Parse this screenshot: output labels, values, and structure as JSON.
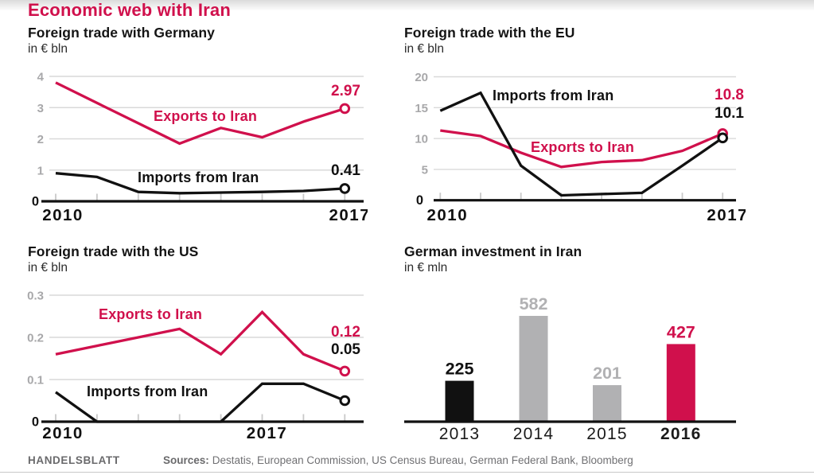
{
  "page_title": "Economic web with Iran",
  "colors": {
    "crimson": "#d0104c",
    "black": "#111111",
    "gray_bar": "#b1b1b3",
    "gray_tick": "#a8a8aa",
    "gridline": "#d9d9d9",
    "tick_mark": "#c9c9c9",
    "year_label": "#1a1a1a",
    "footer_text": "#707073"
  },
  "chart_data": [
    {
      "id": "germany",
      "type": "line",
      "title": "Foreign trade with Germany",
      "subtitle": "in € bln",
      "x_tick_labels": [
        "2010",
        "",
        "",
        "",
        "",
        "",
        "",
        "2017"
      ],
      "y_ticks": [
        {
          "label": "4",
          "value": 4
        },
        {
          "label": "3",
          "value": 3
        },
        {
          "label": "2",
          "value": 2
        },
        {
          "label": "1",
          "value": 1
        },
        {
          "label": "0",
          "value": 0
        }
      ],
      "ylim": [
        0,
        4
      ],
      "grid": true,
      "series": [
        {
          "name": "Exports to Iran",
          "color": "crimson",
          "values": [
            3.8,
            3.15,
            2.5,
            1.85,
            2.35,
            2.05,
            2.55,
            2.97
          ],
          "end_label": "2.97"
        },
        {
          "name": "Imports from Iran",
          "color": "black",
          "values": [
            0.9,
            0.78,
            0.3,
            0.26,
            0.28,
            0.3,
            0.33,
            0.41
          ],
          "end_label": "0.41"
        }
      ]
    },
    {
      "id": "eu",
      "type": "line",
      "title": "Foreign trade with the EU",
      "subtitle": "in € bln",
      "x_tick_labels": [
        "2010",
        "",
        "",
        "",
        "",
        "",
        "",
        "2017"
      ],
      "y_ticks": [
        {
          "label": "20",
          "value": 20
        },
        {
          "label": "15",
          "value": 15
        },
        {
          "label": "10",
          "value": 10
        },
        {
          "label": "5",
          "value": 5
        },
        {
          "label": "0",
          "value": 0
        }
      ],
      "ylim": [
        0,
        20
      ],
      "grid": true,
      "series": [
        {
          "name": "Exports to Iran",
          "color": "crimson",
          "values": [
            11.3,
            10.4,
            7.7,
            5.4,
            6.2,
            6.5,
            8.0,
            10.8
          ],
          "end_label": "10.8"
        },
        {
          "name": "Imports from Iran",
          "color": "black",
          "values": [
            14.5,
            17.4,
            5.6,
            0.8,
            1.0,
            1.2,
            5.6,
            10.1
          ],
          "end_label": "10.1"
        }
      ]
    },
    {
      "id": "us",
      "type": "line",
      "title": "Foreign trade with the US",
      "subtitle": "in € bln",
      "x_tick_labels": [
        "2010",
        "",
        "",
        "",
        "",
        "2017",
        "",
        ""
      ],
      "y_ticks": [
        {
          "label": "0.3",
          "value": 0.3
        },
        {
          "label": "0.2",
          "value": 0.2
        },
        {
          "label": "0.1",
          "value": 0.1
        },
        {
          "label": "0",
          "value": 0
        }
      ],
      "ylim": [
        0,
        0.3
      ],
      "grid": true,
      "series": [
        {
          "name": "Exports to Iran",
          "color": "crimson",
          "values": [
            0.16,
            0.18,
            0.2,
            0.22,
            0.16,
            0.26,
            0.16,
            0.12
          ],
          "end_label": "0.12"
        },
        {
          "name": "Imports from Iran",
          "color": "black",
          "values": [
            0.07,
            0,
            0,
            0,
            0,
            0.09,
            0.09,
            0.05
          ],
          "end_label": "0.05"
        }
      ]
    },
    {
      "id": "investment",
      "type": "bar",
      "title": "German investment in Iran",
      "subtitle": "in € mln",
      "categories": [
        "2013",
        "2014",
        "2015",
        "2016"
      ],
      "values": [
        225,
        582,
        201,
        427
      ],
      "bar_colors": [
        "black",
        "gray_bar",
        "gray_bar",
        "crimson"
      ],
      "value_label_colors": [
        "black",
        "gray_bar",
        "gray_bar",
        "crimson"
      ],
      "bold_categories": [
        "2016"
      ],
      "ylim": [
        0,
        650
      ]
    }
  ],
  "footer": {
    "brand": "HANDELSBLATT",
    "sources_label": "Sources:",
    "sources_text": "Destatis, European Commission, US Census Bureau, German Federal Bank, Bloomberg"
  }
}
